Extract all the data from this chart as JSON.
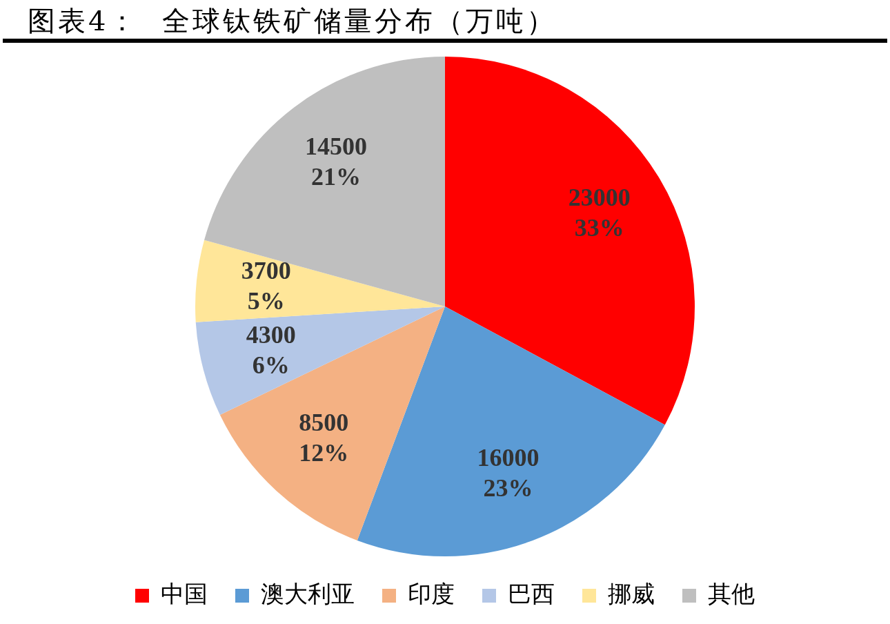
{
  "chart_data": {
    "type": "pie",
    "title": "图表4：  全球钛铁矿储量分布（万吨）",
    "categories": [
      "中国",
      "澳大利亚",
      "印度",
      "巴西",
      "挪威",
      "其他"
    ],
    "values": [
      23000,
      16000,
      8500,
      4300,
      3700,
      14500
    ],
    "colors": [
      "#ff0000",
      "#5b9bd5",
      "#f4b183",
      "#b4c7e7",
      "#ffe699",
      "#bfbfbf"
    ],
    "value_labels": [
      "23000\n33%",
      "16000\n23%",
      "8500\n12%",
      "4300\n6%",
      "3700\n5%",
      "14500\n21%"
    ],
    "legend": "bottom"
  }
}
